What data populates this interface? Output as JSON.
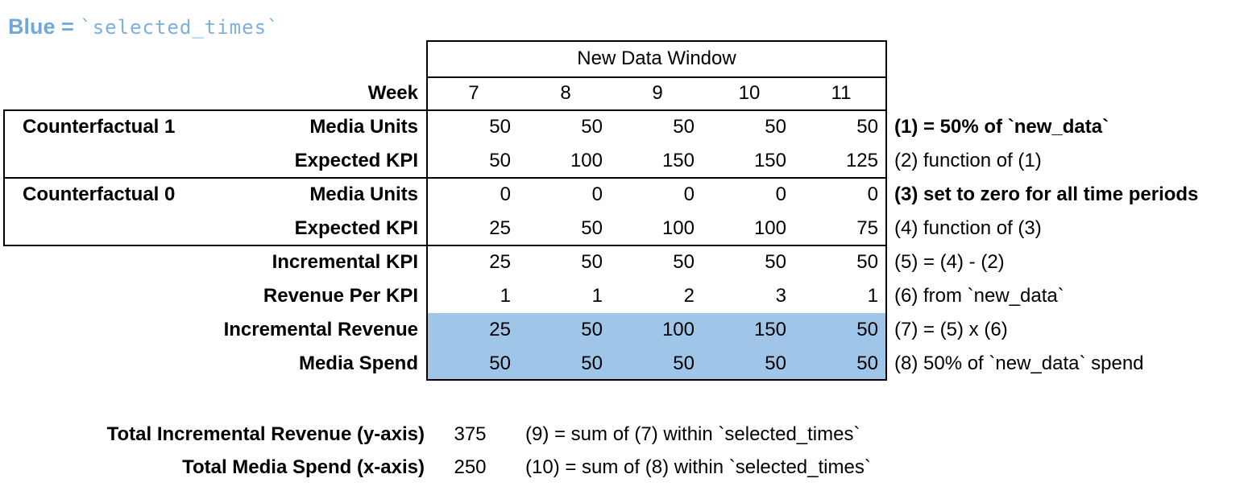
{
  "legend": {
    "label": "Blue = ",
    "code": "`selected_times`"
  },
  "colors": {
    "highlight": "#9fc5e8",
    "legend_label_blue": "#6fa8dc",
    "legend_code_blue": "#7fafdf",
    "border": "#000000"
  },
  "table": {
    "window_header": "New Data Window",
    "week_label": "Week",
    "weeks": [
      "7",
      "8",
      "9",
      "10",
      "11"
    ],
    "rows": [
      {
        "group": "Counterfactual 1",
        "label": "Media Units",
        "values": [
          "50",
          "50",
          "50",
          "50",
          "50"
        ],
        "note": "(1) = 50% of `new_data`",
        "note_bold": true,
        "highlight": false
      },
      {
        "group": "",
        "label": "Expected KPI",
        "values": [
          "50",
          "100",
          "150",
          "150",
          "125"
        ],
        "note": "(2) function of (1)",
        "note_bold": false,
        "highlight": false
      },
      {
        "group": "Counterfactual 0",
        "label": "Media Units",
        "values": [
          "0",
          "0",
          "0",
          "0",
          "0"
        ],
        "note": "(3) set to zero for all time periods",
        "note_bold": true,
        "highlight": false
      },
      {
        "group": "",
        "label": "Expected KPI",
        "values": [
          "25",
          "50",
          "100",
          "100",
          "75"
        ],
        "note": "(4) function of (3)",
        "note_bold": false,
        "highlight": false
      },
      {
        "group": "",
        "label": "Incremental KPI",
        "values": [
          "25",
          "50",
          "50",
          "50",
          "50"
        ],
        "note": "(5) = (4) - (2)",
        "note_bold": false,
        "highlight": false
      },
      {
        "group": "",
        "label": "Revenue Per KPI",
        "values": [
          "1",
          "1",
          "2",
          "3",
          "1"
        ],
        "note": "(6) from `new_data`",
        "note_bold": false,
        "highlight": false
      },
      {
        "group": "",
        "label": "Incremental Revenue",
        "values": [
          "25",
          "50",
          "100",
          "150",
          "50"
        ],
        "note": "(7) = (5) x (6)",
        "note_bold": false,
        "highlight": true
      },
      {
        "group": "",
        "label": "Media Spend",
        "values": [
          "50",
          "50",
          "50",
          "50",
          "50"
        ],
        "note": "(8) 50% of `new_data` spend",
        "note_bold": false,
        "highlight": true
      }
    ]
  },
  "totals": [
    {
      "label": "Total Incremental Revenue (y-axis)",
      "value": "375",
      "note": "(9) = sum of (7) within `selected_times`"
    },
    {
      "label": "Total Media Spend (x-axis)",
      "value": "250",
      "note": "(10) = sum of (8) within `selected_times`"
    }
  ]
}
